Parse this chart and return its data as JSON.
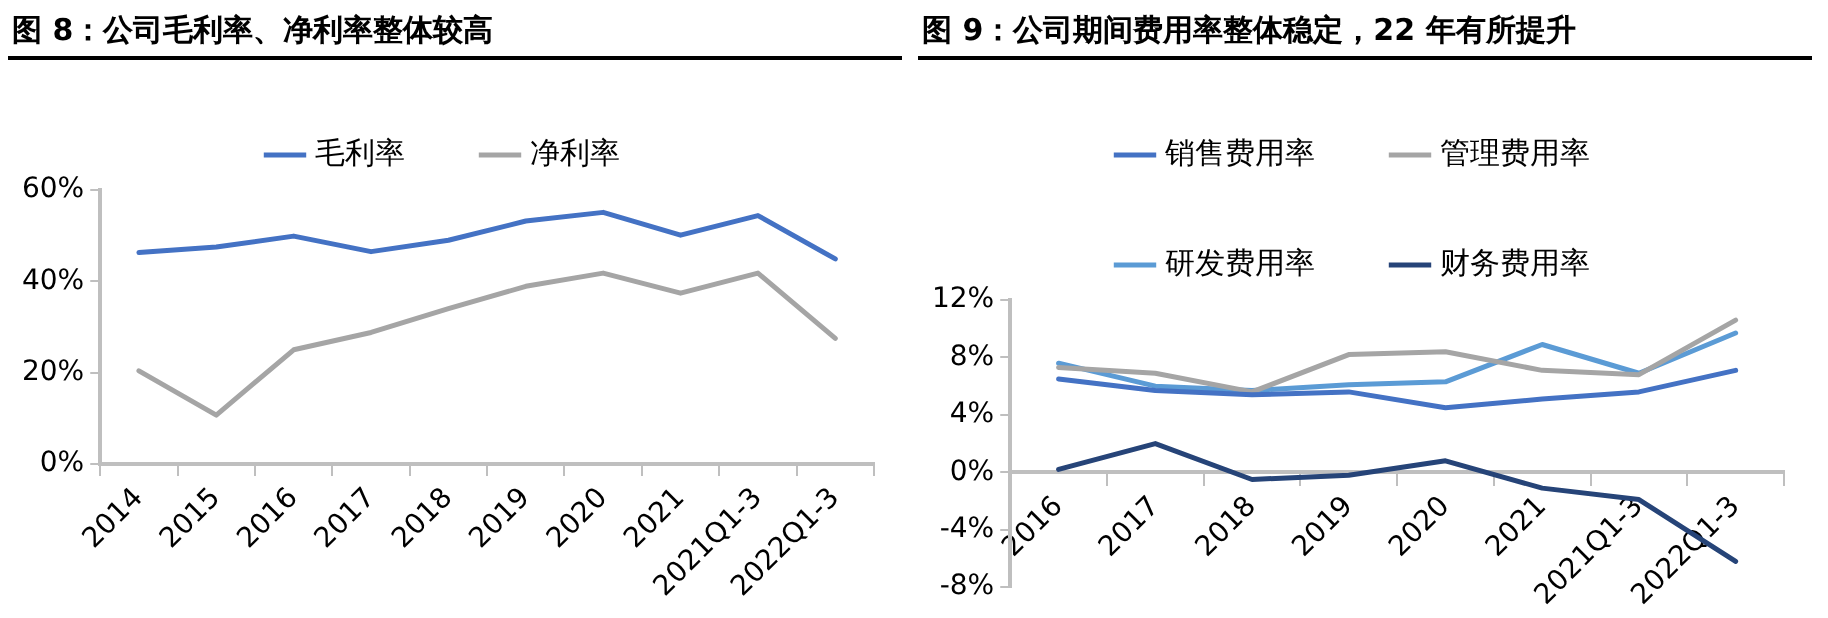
{
  "chart_data": [
    {
      "type": "line",
      "title": "图 8：公司毛利率、净利率整体较高",
      "categories": [
        "2014",
        "2015",
        "2016",
        "2017",
        "2018",
        "2019",
        "2020",
        "2021",
        "2021Q1-3",
        "2022Q1-3"
      ],
      "series": [
        {
          "name": "毛利率",
          "color": "#4472c4",
          "values": [
            46.3,
            47.5,
            49.9,
            46.5,
            49,
            53.2,
            55.1,
            50.1,
            54.4,
            44.9
          ]
        },
        {
          "name": "净利率",
          "color": "#a5a5a5",
          "values": [
            20.4,
            10.7,
            25,
            28.8,
            34,
            38.9,
            41.8,
            37.4,
            41.8,
            27.5
          ]
        }
      ],
      "ylim": [
        0,
        60
      ],
      "yticks": [
        {
          "value": 0,
          "label": "0%"
        },
        {
          "value": 20,
          "label": "20%"
        },
        {
          "value": 40,
          "label": "40%"
        },
        {
          "value": 60,
          "label": "60%"
        }
      ],
      "grid": false,
      "legend": "top",
      "marker": "none"
    },
    {
      "type": "line",
      "title": "图 9：公司期间费用率整体稳定，22 年有所提升",
      "categories": [
        "2016",
        "2017",
        "2018",
        "2019",
        "2020",
        "2021",
        "2021Q1-3",
        "2022Q1-3"
      ],
      "series": [
        {
          "name": "销售费用率",
          "color": "#4472c4",
          "values": [
            6.5,
            5.7,
            5.4,
            5.6,
            4.5,
            5.1,
            5.6,
            7.1
          ]
        },
        {
          "name": "管理费用率",
          "color": "#a5a5a5",
          "values": [
            7.3,
            6.9,
            5.6,
            8.2,
            8.4,
            7.1,
            6.8,
            10.6
          ]
        },
        {
          "name": "研发费用率",
          "color": "#5b9bd5",
          "values": [
            7.6,
            6.0,
            5.7,
            6.1,
            6.3,
            8.9,
            6.9,
            9.7
          ]
        },
        {
          "name": "财务费用率",
          "color": "#264478",
          "values": [
            0.2,
            2.0,
            -0.5,
            -0.2,
            0.8,
            -1.1,
            -1.9,
            -6.2
          ]
        }
      ],
      "ylim": [
        -8,
        12
      ],
      "yticks": [
        {
          "value": -8,
          "label": "-8%"
        },
        {
          "value": -4,
          "label": "-4%"
        },
        {
          "value": 0,
          "label": "0%"
        },
        {
          "value": 4,
          "label": "4%"
        },
        {
          "value": 8,
          "label": "8%"
        },
        {
          "value": 12,
          "label": "12%"
        }
      ],
      "grid": false,
      "legend": "top",
      "marker": "none"
    }
  ]
}
